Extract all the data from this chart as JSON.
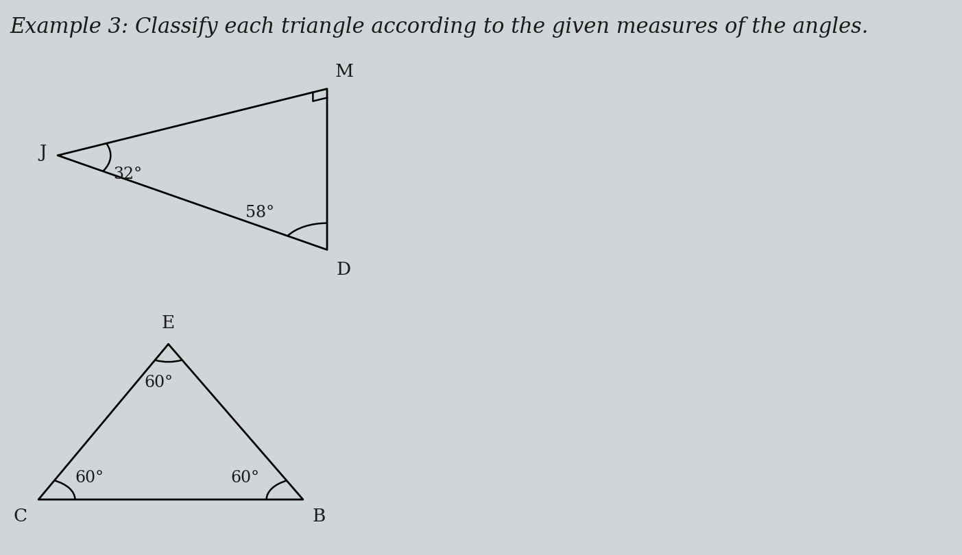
{
  "title": "Example 3: Classify each triangle according to the given measures of the angles.",
  "title_fontsize": 22,
  "bg_color": "#d0d5d8",
  "text_color": "#1a1a1a",
  "tri1": {
    "J": [
      0.06,
      0.72
    ],
    "M": [
      0.34,
      0.84
    ],
    "D": [
      0.34,
      0.55
    ],
    "angle_J": "32°",
    "angle_D": "58°"
  },
  "tri2": {
    "E": [
      0.175,
      0.38
    ],
    "C": [
      0.04,
      0.1
    ],
    "B": [
      0.315,
      0.1
    ],
    "angle_E": "60°",
    "angle_C": "60°",
    "angle_B": "60°"
  }
}
